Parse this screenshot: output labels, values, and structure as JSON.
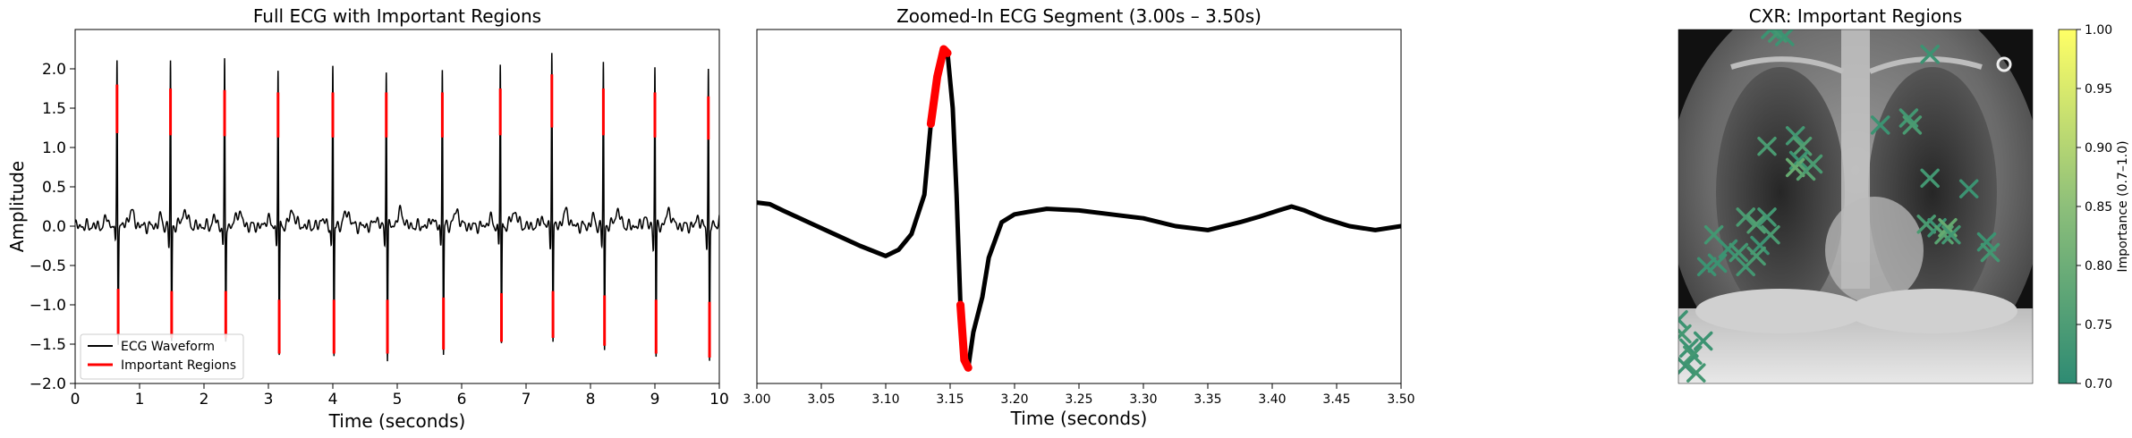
{
  "chart_data": [
    {
      "type": "line",
      "title": "Full ECG with Important Regions",
      "xlabel": "Time (seconds)",
      "ylabel": "Amplitude",
      "xlim": [
        0,
        10
      ],
      "ylim": [
        -2.0,
        2.5
      ],
      "xticks": [
        "0",
        "1",
        "2",
        "3",
        "4",
        "5",
        "6",
        "7",
        "8",
        "9",
        "10"
      ],
      "yticks": [
        "−2.0",
        "−1.5",
        "−1.0",
        "−0.5",
        "0.0",
        "0.5",
        "1.0",
        "1.5",
        "2.0"
      ],
      "legend_position": "lower-left",
      "series": [
        {
          "name": "ECG Waveform",
          "color": "#000000"
        },
        {
          "name": "Important Regions",
          "color": "#ff0000"
        }
      ],
      "r_peaks_s": [
        0.65,
        1.48,
        2.32,
        3.15,
        4.0,
        4.83,
        5.7,
        6.6,
        7.4,
        8.2,
        9.0,
        9.83
      ],
      "r_peak_amplitudes": [
        2.15,
        2.1,
        2.08,
        2.05,
        2.05,
        2.05,
        2.05,
        2.1,
        2.28,
        2.1,
        2.05,
        2.0
      ],
      "s_trough_amplitudes": [
        -1.45,
        -1.5,
        -1.5,
        -1.7,
        -1.7,
        -1.7,
        -1.65,
        -1.55,
        -1.5,
        -1.6,
        -1.7,
        -1.75
      ]
    },
    {
      "type": "line",
      "title": "Zoomed-In ECG Segment (3.00s – 3.50s)",
      "xlabel": "Time (seconds)",
      "xlim": [
        3.0,
        3.5
      ],
      "ylim": [
        -2.0,
        2.5
      ],
      "xticks": [
        "3.00",
        "3.05",
        "3.10",
        "3.15",
        "3.20",
        "3.25",
        "3.30",
        "3.35",
        "3.40",
        "3.45",
        "3.50"
      ],
      "x": [
        3.0,
        3.01,
        3.02,
        3.04,
        3.06,
        3.08,
        3.1,
        3.11,
        3.12,
        3.13,
        3.135,
        3.14,
        3.145,
        3.148,
        3.152,
        3.155,
        3.158,
        3.161,
        3.164,
        3.168,
        3.175,
        3.18,
        3.19,
        3.2,
        3.21,
        3.225,
        3.25,
        3.275,
        3.3,
        3.325,
        3.35,
        3.375,
        3.39,
        3.405,
        3.415,
        3.425,
        3.44,
        3.46,
        3.48,
        3.5
      ],
      "y": [
        0.3,
        0.28,
        0.2,
        0.05,
        -0.1,
        -0.25,
        -0.38,
        -0.3,
        -0.1,
        0.4,
        1.3,
        1.9,
        2.25,
        2.2,
        1.5,
        0.4,
        -1.0,
        -1.7,
        -1.8,
        -1.35,
        -0.9,
        -0.4,
        0.05,
        0.15,
        0.18,
        0.22,
        0.2,
        0.15,
        0.1,
        0.0,
        -0.05,
        0.05,
        0.12,
        0.2,
        0.25,
        0.2,
        0.1,
        0.0,
        -0.05,
        0.0
      ],
      "important_ranges_s": [
        [
          3.135,
          3.148
        ],
        [
          3.158,
          3.166
        ]
      ]
    },
    {
      "type": "scatter",
      "title": "CXR: Important Regions",
      "colorbar_label": "Importance (0.7–1.0)",
      "colorbar_range": [
        0.7,
        1.0
      ],
      "colorbar_ticks": [
        "0.70",
        "0.75",
        "0.80",
        "0.85",
        "0.90",
        "0.95",
        "1.00"
      ],
      "marker": "x",
      "colormap": "summer",
      "points": [
        [
          0.26,
          0.0,
          0.72
        ],
        [
          0.28,
          0.01,
          0.73
        ],
        [
          0.3,
          0.02,
          0.72
        ],
        [
          0.71,
          0.07,
          0.72
        ],
        [
          0.25,
          0.33,
          0.74
        ],
        [
          0.33,
          0.3,
          0.73
        ],
        [
          0.35,
          0.33,
          0.75
        ],
        [
          0.34,
          0.37,
          0.72
        ],
        [
          0.33,
          0.39,
          0.78
        ],
        [
          0.36,
          0.4,
          0.76
        ],
        [
          0.38,
          0.38,
          0.74
        ],
        [
          0.57,
          0.27,
          0.72
        ],
        [
          0.65,
          0.25,
          0.73
        ],
        [
          0.66,
          0.27,
          0.74
        ],
        [
          0.71,
          0.42,
          0.73
        ],
        [
          0.82,
          0.45,
          0.72
        ],
        [
          0.7,
          0.55,
          0.74
        ],
        [
          0.73,
          0.56,
          0.72
        ],
        [
          0.75,
          0.58,
          0.76
        ],
        [
          0.76,
          0.56,
          0.78
        ],
        [
          0.77,
          0.58,
          0.73
        ],
        [
          0.87,
          0.6,
          0.72
        ],
        [
          0.88,
          0.63,
          0.73
        ],
        [
          0.1,
          0.58,
          0.73
        ],
        [
          0.14,
          0.62,
          0.72
        ],
        [
          0.19,
          0.53,
          0.74
        ],
        [
          0.22,
          0.55,
          0.75
        ],
        [
          0.25,
          0.53,
          0.73
        ],
        [
          0.26,
          0.58,
          0.74
        ],
        [
          0.23,
          0.61,
          0.72
        ],
        [
          0.17,
          0.63,
          0.73
        ],
        [
          0.11,
          0.66,
          0.72
        ],
        [
          0.08,
          0.67,
          0.72
        ],
        [
          0.19,
          0.67,
          0.73
        ],
        [
          0.22,
          0.64,
          0.74
        ],
        [
          0.0,
          0.82,
          0.72
        ],
        [
          0.01,
          0.86,
          0.73
        ],
        [
          0.03,
          0.9,
          0.72
        ],
        [
          0.04,
          0.92,
          0.73
        ],
        [
          0.07,
          0.88,
          0.72
        ],
        [
          0.02,
          0.95,
          0.72
        ],
        [
          0.05,
          0.97,
          0.73
        ]
      ]
    }
  ],
  "legend": {
    "ecg_label": "ECG Waveform",
    "important_label": "Important Regions"
  }
}
